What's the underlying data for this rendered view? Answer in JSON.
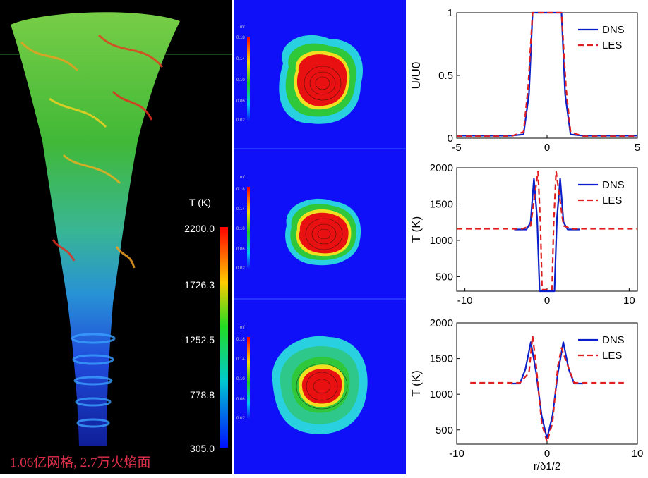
{
  "left": {
    "colorbar_title": "T (K)",
    "colorbar_ticks": [
      "2200.0",
      "1726.3",
      "1252.5",
      "778.8",
      "305.0"
    ],
    "caption": "1.06亿网格, 2.7万火焰面"
  },
  "middle": {
    "colorbar_label": "mf",
    "colorbar_ticks": [
      "0.18",
      "0.14",
      "0.10",
      "0.06",
      "0.02"
    ]
  },
  "chart_data": [
    {
      "type": "line",
      "ylabel": "U/U0",
      "xlim": [
        -5,
        5
      ],
      "ylim": [
        0,
        1
      ],
      "xticks": [
        "-5",
        "0",
        "5"
      ],
      "yticks": [
        "0",
        "0.5",
        "1"
      ],
      "legend": "top-right",
      "series": [
        {
          "name": "DNS",
          "color": "#0a1fc8",
          "style": "solid",
          "x": [
            -5,
            -2,
            -1.3,
            -1.0,
            -0.8,
            0.8,
            1.0,
            1.3,
            2,
            5
          ],
          "y": [
            0.02,
            0.02,
            0.03,
            0.35,
            1,
            1,
            0.35,
            0.03,
            0.02,
            0.02
          ]
        },
        {
          "name": "LES",
          "color": "#e02020",
          "style": "dashed",
          "x": [
            -5,
            -2,
            -1.3,
            -1.05,
            -0.8,
            0.8,
            1.05,
            1.3,
            2,
            5
          ],
          "y": [
            0.015,
            0.015,
            0.05,
            0.4,
            1,
            1,
            0.4,
            0.05,
            0.015,
            0.015
          ]
        }
      ]
    },
    {
      "type": "line",
      "ylabel": "T (K)",
      "xlim": [
        -11,
        11
      ],
      "ylim": [
        300,
        2000
      ],
      "xticks": [
        "-10",
        "0",
        "10"
      ],
      "yticks": [
        "500",
        "1000",
        "1500",
        "2000"
      ],
      "legend": "top-right",
      "series": [
        {
          "name": "DNS",
          "color": "#0a1fc8",
          "style": "solid",
          "x": [
            -4,
            -2.5,
            -2,
            -1.6,
            -1.2,
            -0.9,
            -0.6,
            0.6,
            0.9,
            1.2,
            1.6,
            2,
            2.5,
            4
          ],
          "y": [
            1150,
            1150,
            1250,
            1850,
            1300,
            300,
            300,
            300,
            300,
            1300,
            1850,
            1250,
            1150,
            1150
          ]
        },
        {
          "name": "LES",
          "color": "#e02020",
          "style": "dashed",
          "x": [
            -11,
            -3,
            -2,
            -1.4,
            -1.1,
            -0.8,
            -0.6,
            0.6,
            0.8,
            1.1,
            1.4,
            2,
            3,
            11
          ],
          "y": [
            1160,
            1160,
            1200,
            1700,
            1950,
            1200,
            320,
            320,
            1200,
            1950,
            1700,
            1200,
            1160,
            1160
          ]
        }
      ]
    },
    {
      "type": "line",
      "xlabel": "r/δ1/2",
      "ylabel": "T (K)",
      "xlim": [
        -10,
        10
      ],
      "ylim": [
        300,
        2000
      ],
      "xticks": [
        "-10",
        "0",
        "10"
      ],
      "yticks": [
        "500",
        "1000",
        "1500",
        "2000"
      ],
      "legend": "top-right",
      "series": [
        {
          "name": "DNS",
          "color": "#0a1fc8",
          "style": "solid",
          "x": [
            -4,
            -3,
            -2.4,
            -1.8,
            -1.2,
            -0.6,
            0,
            0.6,
            1.2,
            1.8,
            2.4,
            3,
            4
          ],
          "y": [
            1150,
            1150,
            1350,
            1730,
            1300,
            700,
            380,
            700,
            1300,
            1730,
            1350,
            1150,
            1150
          ]
        },
        {
          "name": "LES",
          "color": "#e02020",
          "style": "dashed",
          "x": [
            -8.5,
            -3,
            -2,
            -1.6,
            -1.2,
            -0.6,
            0,
            0.6,
            1.2,
            1.6,
            2,
            3,
            8.5
          ],
          "y": [
            1160,
            1160,
            1300,
            1820,
            1400,
            600,
            330,
            600,
            1400,
            1650,
            1500,
            1160,
            1160
          ]
        }
      ]
    }
  ]
}
